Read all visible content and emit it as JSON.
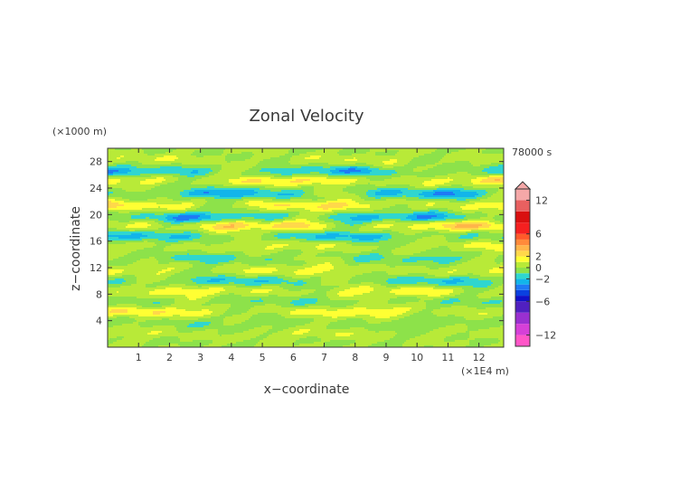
{
  "chart_data": {
    "type": "heatmap",
    "title": "Zonal Velocity",
    "xlabel": "x−coordinate",
    "ylabel": "z−coordinate",
    "x_unit": "(×1E4 m)",
    "y_unit": "(×1000 m)",
    "time_label": "78000 s",
    "xlim": [
      0,
      12.8
    ],
    "ylim": [
      0,
      30
    ],
    "x_ticks": [
      1,
      2,
      3,
      4,
      5,
      6,
      7,
      8,
      9,
      10,
      11,
      12
    ],
    "y_ticks": [
      4,
      8,
      12,
      16,
      20,
      24,
      28
    ],
    "colorbar": {
      "levels": [
        -14,
        -12,
        -10,
        -8,
        -6,
        -5,
        -4,
        -3,
        -2,
        -1,
        0,
        1,
        2,
        3,
        4,
        5,
        6,
        8,
        10,
        12,
        14
      ],
      "colors": [
        "#ff55c8",
        "#d640d8",
        "#9a30d0",
        "#5020c0",
        "#1010c8",
        "#0a40e0",
        "#1f7af5",
        "#12b5ea",
        "#2fd6cf",
        "#8de24a",
        "#b8ea38",
        "#ffff33",
        "#ffd84a",
        "#ffb54a",
        "#ff8a3a",
        "#ff5a2a",
        "#f52020",
        "#d91010",
        "#e86060",
        "#f5a8a8"
      ],
      "tick_labels": [
        "12",
        "6",
        "2",
        "0",
        "−2",
        "−6",
        "−12"
      ],
      "tick_values": [
        12,
        6,
        2,
        0,
        -2,
        -6,
        -12
      ]
    },
    "bands": [
      {
        "z": 28.3,
        "amp": 0.8,
        "phase": 0.3
      },
      {
        "z": 26.5,
        "amp": -2.6,
        "phase": 0.9
      },
      {
        "z": 25.1,
        "amp": 2.4,
        "phase": 2.2
      },
      {
        "z": 23.2,
        "amp": -2.8,
        "phase": 4.1
      },
      {
        "z": 21.4,
        "amp": 2.2,
        "phase": 1.3
      },
      {
        "z": 19.6,
        "amp": -2.9,
        "phase": 5.0
      },
      {
        "z": 18.3,
        "amp": 2.8,
        "phase": 3.4
      },
      {
        "z": 16.7,
        "amp": -2.3,
        "phase": 0.6
      },
      {
        "z": 15.2,
        "amp": 1.1,
        "phase": 2.7
      },
      {
        "z": 13.4,
        "amp": -1.3,
        "phase": 4.6
      },
      {
        "z": 11.6,
        "amp": 1.5,
        "phase": 1.9
      },
      {
        "z": 10.0,
        "amp": -1.9,
        "phase": 3.9
      },
      {
        "z": 8.4,
        "amp": 1.7,
        "phase": 5.3
      },
      {
        "z": 6.9,
        "amp": -0.9,
        "phase": 2.4
      },
      {
        "z": 5.3,
        "amp": 1.9,
        "phase": 0.2
      },
      {
        "z": 3.6,
        "amp": -0.6,
        "phase": 4.3
      },
      {
        "z": 1.9,
        "amp": 0.8,
        "phase": 1.6
      }
    ]
  }
}
